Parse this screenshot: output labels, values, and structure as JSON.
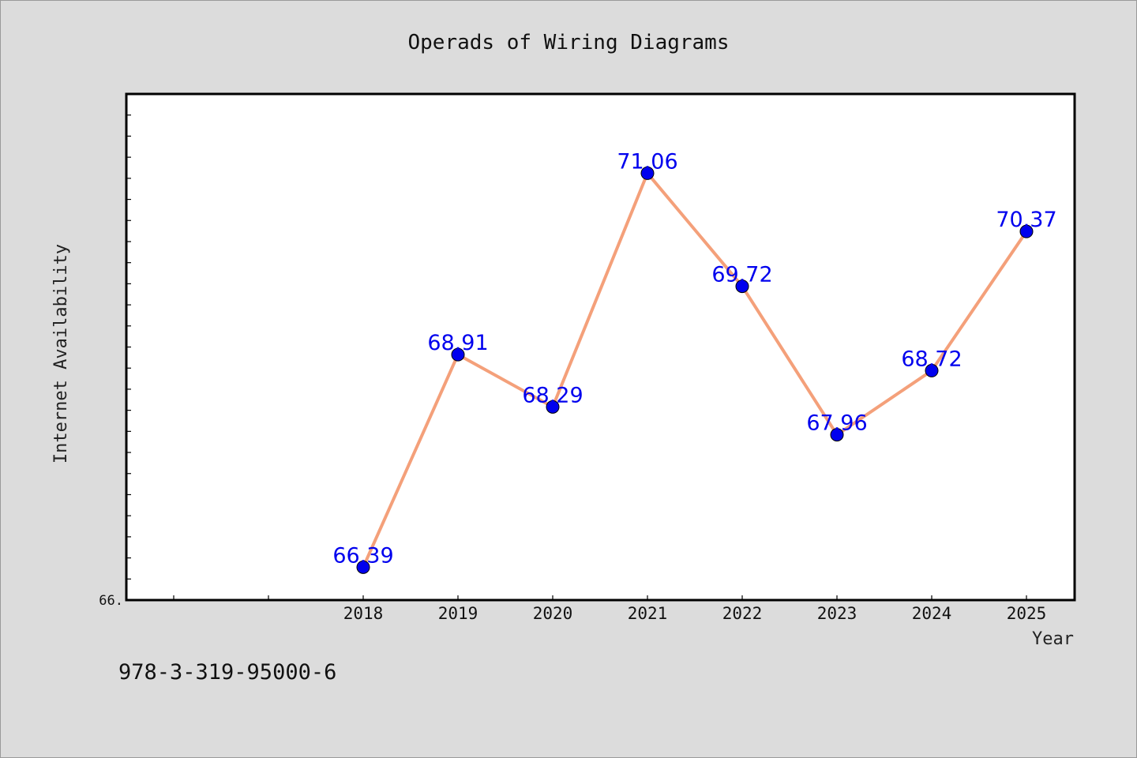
{
  "caption": "978-3-319-95000-6",
  "chart_data": {
    "type": "line",
    "title": "Operads of Wiring Diagrams",
    "xlabel": "Year",
    "ylabel": "Internet Availability",
    "categories": [
      "2018",
      "2019",
      "2020",
      "2021",
      "2022",
      "2023",
      "2024",
      "2025"
    ],
    "series": [
      {
        "values": [
          66.39,
          68.91,
          68.29,
          71.06,
          69.72,
          67.96,
          68.72,
          70.37
        ],
        "labels": [
          "66.39",
          "68.91",
          "68.29",
          "71.06",
          "69.72",
          "67.96",
          "68.72",
          "70.37"
        ]
      }
    ],
    "ylim": [
      66.0,
      72.0
    ],
    "ytick_labels": [
      "66."
    ],
    "grid": false,
    "legend": "none",
    "line_color": "#f4a07a",
    "marker_color": "#0000ee",
    "label_color": "#0000ee"
  }
}
